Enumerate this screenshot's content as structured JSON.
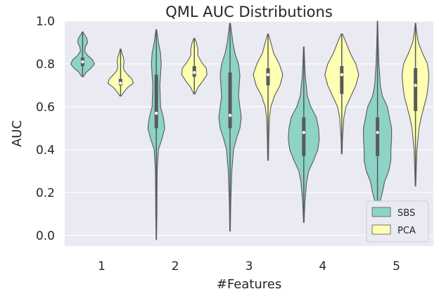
{
  "chart_data": {
    "type": "violin",
    "title": "QML AUC Distributions",
    "xlabel": "#Features",
    "ylabel": "AUC",
    "categories": [
      "1",
      "2",
      "3",
      "4",
      "5"
    ],
    "ylim": [
      -0.05,
      1.0
    ],
    "yticks": [
      "0.0",
      "0.2",
      "0.4",
      "0.6",
      "0.8",
      "1.0"
    ],
    "grid": true,
    "legend_position": "lower-right",
    "series": [
      {
        "name": "SBS",
        "color": "#8dd3c7",
        "violins": [
          {
            "min": 0.74,
            "q1": 0.79,
            "median": 0.81,
            "q3": 0.83,
            "max": 0.95,
            "profile": [
              [
                0.74,
                0.01
              ],
              [
                0.76,
                0.05
              ],
              [
                0.78,
                0.12
              ],
              [
                0.8,
                0.17
              ],
              [
                0.82,
                0.14
              ],
              [
                0.84,
                0.07
              ],
              [
                0.86,
                0.03
              ],
              [
                0.88,
                0.04
              ],
              [
                0.9,
                0.07
              ],
              [
                0.92,
                0.06
              ],
              [
                0.94,
                0.02
              ],
              [
                0.95,
                0.005
              ]
            ]
          },
          {
            "min": -0.02,
            "q1": 0.5,
            "median": 0.57,
            "q3": 0.75,
            "max": 0.96,
            "profile": [
              [
                -0.02,
                0.003
              ],
              [
                0.1,
                0.008
              ],
              [
                0.3,
                0.012
              ],
              [
                0.4,
                0.03
              ],
              [
                0.45,
                0.08
              ],
              [
                0.5,
                0.12
              ],
              [
                0.55,
                0.1
              ],
              [
                0.6,
                0.06
              ],
              [
                0.7,
                0.05
              ],
              [
                0.75,
                0.06
              ],
              [
                0.8,
                0.07
              ],
              [
                0.85,
                0.06
              ],
              [
                0.9,
                0.03
              ],
              [
                0.96,
                0.005
              ]
            ]
          },
          {
            "min": 0.02,
            "q1": 0.5,
            "median": 0.56,
            "q3": 0.76,
            "max": 0.99,
            "profile": [
              [
                0.02,
                0.004
              ],
              [
                0.15,
                0.01
              ],
              [
                0.3,
                0.025
              ],
              [
                0.4,
                0.05
              ],
              [
                0.45,
                0.09
              ],
              [
                0.5,
                0.14
              ],
              [
                0.55,
                0.16
              ],
              [
                0.6,
                0.14
              ],
              [
                0.65,
                0.12
              ],
              [
                0.7,
                0.13
              ],
              [
                0.75,
                0.14
              ],
              [
                0.8,
                0.12
              ],
              [
                0.85,
                0.07
              ],
              [
                0.9,
                0.04
              ],
              [
                0.99,
                0.005
              ]
            ]
          },
          {
            "min": 0.06,
            "q1": 0.37,
            "median": 0.48,
            "q3": 0.55,
            "max": 0.88,
            "profile": [
              [
                0.06,
                0.004
              ],
              [
                0.15,
                0.015
              ],
              [
                0.25,
                0.04
              ],
              [
                0.3,
                0.07
              ],
              [
                0.35,
                0.14
              ],
              [
                0.4,
                0.2
              ],
              [
                0.45,
                0.22
              ],
              [
                0.5,
                0.21
              ],
              [
                0.55,
                0.18
              ],
              [
                0.6,
                0.1
              ],
              [
                0.65,
                0.05
              ],
              [
                0.75,
                0.02
              ],
              [
                0.88,
                0.004
              ]
            ]
          },
          {
            "min": 0.1,
            "q1": 0.37,
            "median": 0.48,
            "q3": 0.55,
            "max": 1.0,
            "profile": [
              [
                0.1,
                0.004
              ],
              [
                0.15,
                0.03
              ],
              [
                0.2,
                0.07
              ],
              [
                0.25,
                0.1
              ],
              [
                0.3,
                0.16
              ],
              [
                0.35,
                0.19
              ],
              [
                0.4,
                0.19
              ],
              [
                0.45,
                0.2
              ],
              [
                0.5,
                0.2
              ],
              [
                0.55,
                0.17
              ],
              [
                0.6,
                0.14
              ],
              [
                0.65,
                0.07
              ],
              [
                0.7,
                0.04
              ],
              [
                0.8,
                0.02
              ],
              [
                0.9,
                0.01
              ],
              [
                1.0,
                0.003
              ]
            ]
          }
        ]
      },
      {
        "name": "PCA",
        "color": "#ffffb3",
        "violins": [
          {
            "min": 0.65,
            "q1": 0.7,
            "median": 0.71,
            "q3": 0.73,
            "max": 0.87,
            "profile": [
              [
                0.65,
                0.01
              ],
              [
                0.67,
                0.05
              ],
              [
                0.69,
                0.1
              ],
              [
                0.71,
                0.18
              ],
              [
                0.73,
                0.16
              ],
              [
                0.75,
                0.1
              ],
              [
                0.77,
                0.05
              ],
              [
                0.79,
                0.04
              ],
              [
                0.81,
                0.05
              ],
              [
                0.83,
                0.04
              ],
              [
                0.85,
                0.02
              ],
              [
                0.87,
                0.005
              ]
            ]
          },
          {
            "min": 0.66,
            "q1": 0.74,
            "median": 0.76,
            "q3": 0.79,
            "max": 0.92,
            "profile": [
              [
                0.66,
                0.01
              ],
              [
                0.69,
                0.05
              ],
              [
                0.72,
                0.12
              ],
              [
                0.75,
                0.18
              ],
              [
                0.78,
                0.17
              ],
              [
                0.81,
                0.1
              ],
              [
                0.84,
                0.05
              ],
              [
                0.87,
                0.05
              ],
              [
                0.9,
                0.03
              ],
              [
                0.92,
                0.005
              ]
            ]
          },
          {
            "min": 0.35,
            "q1": 0.7,
            "median": 0.75,
            "q3": 0.78,
            "max": 0.94,
            "profile": [
              [
                0.35,
                0.005
              ],
              [
                0.45,
                0.01
              ],
              [
                0.55,
                0.02
              ],
              [
                0.6,
                0.04
              ],
              [
                0.65,
                0.09
              ],
              [
                0.7,
                0.17
              ],
              [
                0.75,
                0.21
              ],
              [
                0.8,
                0.16
              ],
              [
                0.85,
                0.08
              ],
              [
                0.9,
                0.04
              ],
              [
                0.94,
                0.005
              ]
            ]
          },
          {
            "min": 0.38,
            "q1": 0.66,
            "median": 0.75,
            "q3": 0.79,
            "max": 0.94,
            "profile": [
              [
                0.38,
                0.005
              ],
              [
                0.45,
                0.01
              ],
              [
                0.55,
                0.03
              ],
              [
                0.6,
                0.06
              ],
              [
                0.65,
                0.13
              ],
              [
                0.7,
                0.2
              ],
              [
                0.75,
                0.24
              ],
              [
                0.8,
                0.2
              ],
              [
                0.85,
                0.12
              ],
              [
                0.9,
                0.06
              ],
              [
                0.94,
                0.01
              ]
            ]
          },
          {
            "min": 0.23,
            "q1": 0.58,
            "median": 0.7,
            "q3": 0.78,
            "max": 0.99,
            "profile": [
              [
                0.23,
                0.004
              ],
              [
                0.3,
                0.01
              ],
              [
                0.4,
                0.02
              ],
              [
                0.5,
                0.05
              ],
              [
                0.55,
                0.08
              ],
              [
                0.6,
                0.12
              ],
              [
                0.65,
                0.16
              ],
              [
                0.7,
                0.18
              ],
              [
                0.75,
                0.19
              ],
              [
                0.8,
                0.17
              ],
              [
                0.85,
                0.1
              ],
              [
                0.9,
                0.04
              ],
              [
                0.95,
                0.015
              ],
              [
                0.99,
                0.004
              ]
            ]
          }
        ]
      }
    ]
  }
}
